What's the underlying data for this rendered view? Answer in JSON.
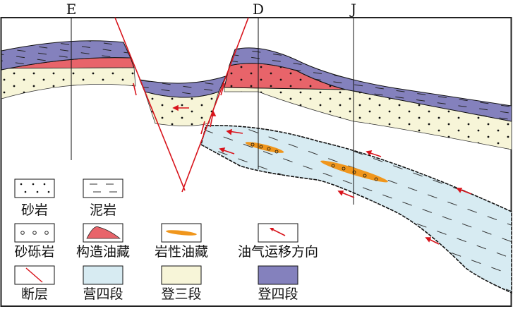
{
  "wells": {
    "e": "E",
    "d": "D",
    "j": "J"
  },
  "legend": {
    "sandstone": "砂岩",
    "mudstone": "泥岩",
    "conglomerate": "砂砾岩",
    "structural_reservoir": "构造油藏",
    "lithologic_reservoir": "岩性油藏",
    "migration_direction": "油气运移方向",
    "fault": "断层",
    "ying4": "营四段",
    "deng3": "登三段",
    "deng4": "登四段"
  },
  "colors": {
    "purple": "#8481bd",
    "red": "#e8646a",
    "yellow": "#f7f5d8",
    "blue": "#d7ebf2",
    "orange": "#f0961c",
    "fault": "#d8141c"
  }
}
